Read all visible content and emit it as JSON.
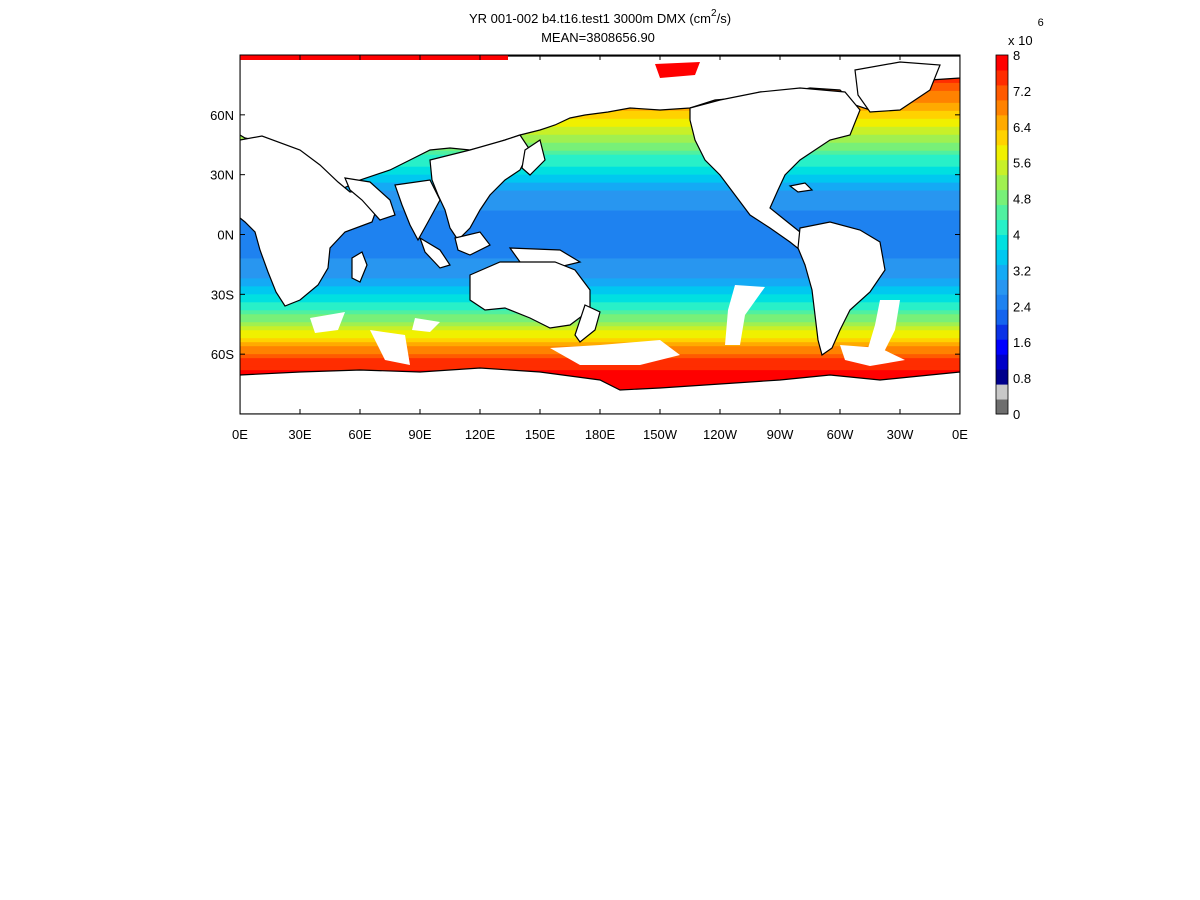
{
  "chart_data": {
    "type": "heatmap",
    "title": "YR 001-002 b4.t16.test1 3000m DMX (cm",
    "title_superscript": "2",
    "title_suffix": "/s)",
    "subtitle": "MEAN=3808656.90",
    "xlabel": "",
    "ylabel": "",
    "x_ticks": [
      "0E",
      "30E",
      "60E",
      "90E",
      "120E",
      "150E",
      "180E",
      "150W",
      "120W",
      "90W",
      "60W",
      "30W",
      "0E"
    ],
    "x_tick_values": [
      0,
      30,
      60,
      90,
      120,
      150,
      180,
      210,
      240,
      270,
      300,
      330,
      360
    ],
    "y_ticks": [
      "60N",
      "30N",
      "0N",
      "30S",
      "60S"
    ],
    "y_tick_values": [
      60,
      30,
      0,
      -30,
      -60
    ],
    "xlim": [
      0,
      360
    ],
    "ylim": [
      -90,
      90
    ],
    "grid": false,
    "colorbar": {
      "exponent_label": "x 10",
      "exponent": "6",
      "ticks": [
        "8",
        "7.2",
        "6.4",
        "5.6",
        "4.8",
        "4",
        "3.2",
        "2.4",
        "1.6",
        "0.8",
        "0"
      ],
      "tick_values": [
        8,
        7.2,
        6.4,
        5.6,
        4.8,
        4,
        3.2,
        2.4,
        1.6,
        0.8,
        0
      ],
      "range": [
        0,
        8
      ],
      "colors": [
        "#6e6e6e",
        "#c8c8c8",
        "#00008c",
        "#0000c8",
        "#0000ff",
        "#0a32e6",
        "#1464ee",
        "#1e82f0",
        "#2896f0",
        "#14aaf5",
        "#00c8f0",
        "#00e0e0",
        "#28f0c8",
        "#50f0a0",
        "#78f078",
        "#a0f050",
        "#c8f028",
        "#f0f000",
        "#ffd200",
        "#ffaa00",
        "#ff8200",
        "#ff5a00",
        "#ff2d00",
        "#ff0000"
      ]
    },
    "zonal_mean_values": [
      {
        "lat": 84,
        "value": 7.9
      },
      {
        "lat": 60,
        "value": 6.2
      },
      {
        "lat": 50,
        "value": 5.3
      },
      {
        "lat": 40,
        "value": 4.4
      },
      {
        "lat": 30,
        "value": 3.6
      },
      {
        "lat": 20,
        "value": 2.9
      },
      {
        "lat": 10,
        "value": 2.6
      },
      {
        "lat": 0,
        "value": 2.5
      },
      {
        "lat": -10,
        "value": 2.6
      },
      {
        "lat": -20,
        "value": 2.9
      },
      {
        "lat": -30,
        "value": 3.6
      },
      {
        "lat": -40,
        "value": 4.6
      },
      {
        "lat": -50,
        "value": 5.8
      },
      {
        "lat": -60,
        "value": 7.1
      },
      {
        "lat": -70,
        "value": 7.9
      }
    ]
  }
}
